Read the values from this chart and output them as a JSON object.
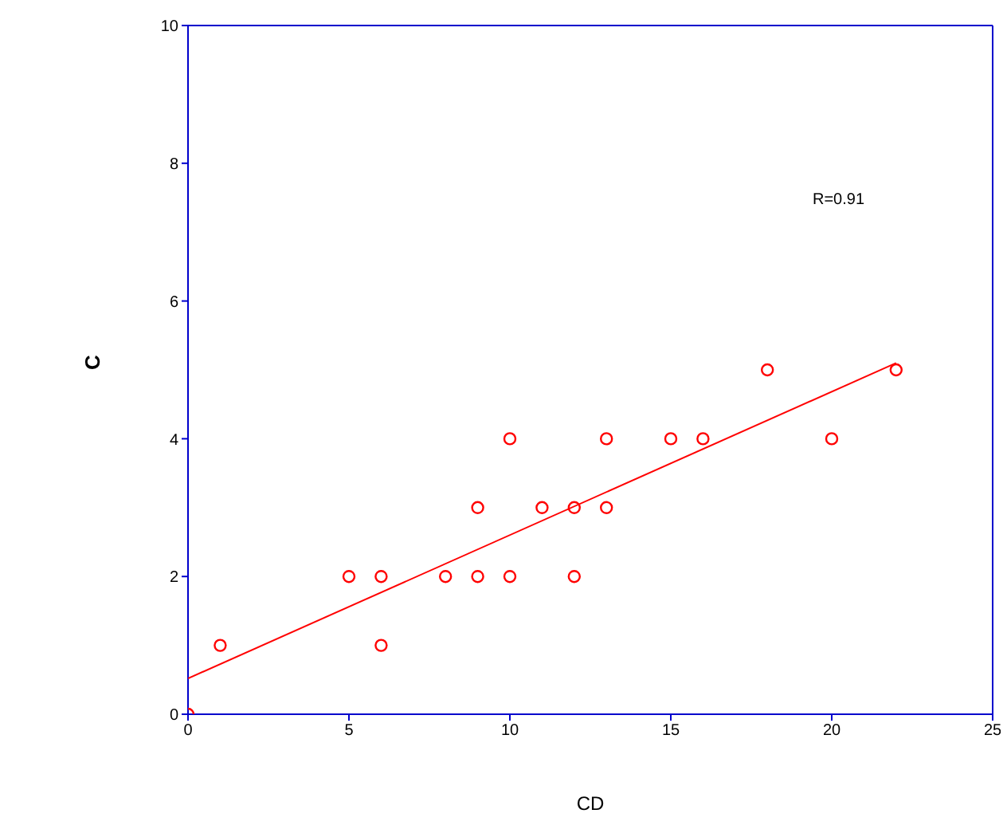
{
  "chart_data": {
    "type": "scatter",
    "xlabel": "CD",
    "ylabel": "C",
    "annotations": [
      "R=0.91"
    ],
    "xlim": [
      0,
      25
    ],
    "xticks": [
      0,
      5,
      10,
      15,
      20,
      25
    ],
    "ylim": [
      0,
      10
    ],
    "yticks": [
      0,
      2,
      4,
      6,
      8,
      10
    ],
    "marker": "circle",
    "series": [
      {
        "color": "#ff0000",
        "x": [
          0,
          1,
          5,
          6,
          6,
          8,
          9,
          9,
          10,
          10,
          11,
          12,
          12,
          13,
          13,
          15,
          16,
          18,
          20,
          22
        ],
        "values": [
          0,
          1,
          2,
          2,
          1,
          2,
          3,
          2,
          4,
          2,
          3,
          3,
          2,
          4,
          3,
          4,
          4,
          5,
          4,
          5
        ]
      },
      {
        "type": "line",
        "color": "#ff0000",
        "marker": "none",
        "x": [
          0,
          22
        ],
        "values": [
          0.52,
          5.1
        ]
      }
    ]
  }
}
